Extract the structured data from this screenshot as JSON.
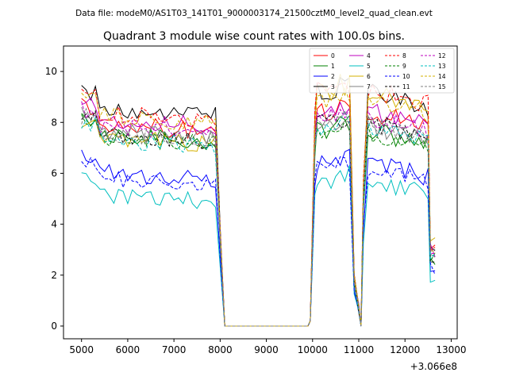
{
  "suptitle": "Data file: modeM0/AS1T03_141T01_9000003174_21500cztM0_level2_quad_clean.evt",
  "chart_data": {
    "type": "line",
    "title": "Quadrant 3 module wise count rates with 100.0s bins.",
    "xlabel": "",
    "ylabel": "",
    "x_offset_label": "+3.066e8",
    "xlim": [
      4610,
      13130
    ],
    "ylim": [
      -0.5,
      11.0
    ],
    "x_ticks": [
      5000,
      6000,
      7000,
      8000,
      9000,
      10000,
      11000,
      12000,
      13000
    ],
    "y_ticks": [
      0,
      2,
      4,
      6,
      8,
      10
    ],
    "legend_location": "upper right",
    "segments": [
      {
        "x_start": 5000,
        "x_end": 8100,
        "step": 100
      },
      {
        "x_start": 8100,
        "x_end": 9950,
        "step": 100
      },
      {
        "x_start": 9950,
        "x_end": 11000,
        "step": 100
      },
      {
        "x_start": 11000,
        "x_end": 11100,
        "step": 100
      },
      {
        "x_start": 11100,
        "x_end": 12650,
        "step": 100
      }
    ],
    "series": [
      {
        "name": "0",
        "color": "#ff0000",
        "dash": "solid",
        "base": 8.0,
        "gap_level": 8.4
      },
      {
        "name": "1",
        "color": "#008000",
        "dash": "solid",
        "base": 7.6,
        "gap_level": 7.7
      },
      {
        "name": "2",
        "color": "#0000ff",
        "dash": "solid",
        "base": 6.1,
        "gap_level": 6.4
      },
      {
        "name": "3",
        "color": "#000000",
        "dash": "solid",
        "base": 8.6,
        "gap_level": 9.2
      },
      {
        "name": "4",
        "color": "#bf00bf",
        "dash": "solid",
        "base": 8.2,
        "gap_level": 8.4
      },
      {
        "name": "5",
        "color": "#00bfbf",
        "dash": "solid",
        "base": 5.2,
        "gap_level": 5.7
      },
      {
        "name": "6",
        "color": "#d4b000",
        "dash": "solid",
        "base": 7.5,
        "gap_level": 9.2
      },
      {
        "name": "7",
        "color": "#808080",
        "dash": "solid",
        "base": 7.7,
        "gap_level": 7.9
      },
      {
        "name": "8",
        "color": "#ff0000",
        "dash": "dashed",
        "base": 8.4,
        "gap_level": 9.3
      },
      {
        "name": "9",
        "color": "#008000",
        "dash": "dashed",
        "base": 7.5,
        "gap_level": 7.6
      },
      {
        "name": "10",
        "color": "#0000ff",
        "dash": "dashed",
        "base": 5.9,
        "gap_level": 6.2
      },
      {
        "name": "11",
        "color": "#000000",
        "dash": "dashed",
        "base": 7.6,
        "gap_level": 8.0
      },
      {
        "name": "12",
        "color": "#bf00bf",
        "dash": "dashed",
        "base": 7.9,
        "gap_level": 8.2
      },
      {
        "name": "13",
        "color": "#00bfbf",
        "dash": "dashed",
        "base": 7.4,
        "gap_level": 7.8
      },
      {
        "name": "14",
        "color": "#d4b000",
        "dash": "dashed",
        "base": 8.3,
        "gap_level": 8.9
      },
      {
        "name": "15",
        "color": "#808080",
        "dash": "dashed",
        "base": 7.6,
        "gap_level": 8.0
      }
    ]
  }
}
